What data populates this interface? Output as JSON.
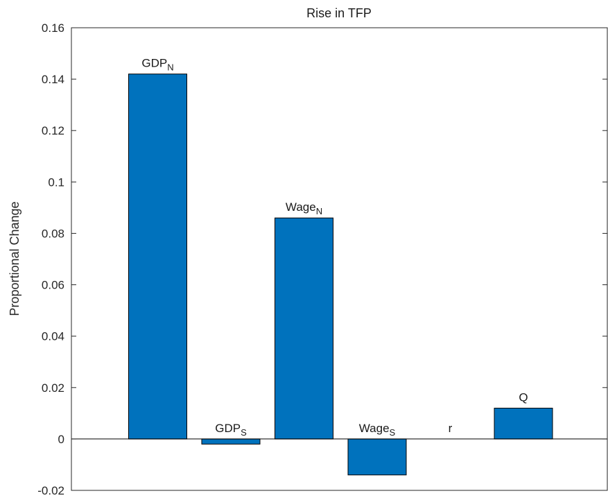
{
  "chart_data": {
    "type": "bar",
    "title": "Rise in TFP",
    "xlabel": "",
    "ylabel": "Proportional Change",
    "ylim": [
      -0.02,
      0.16
    ],
    "yticks": [
      "-0.02",
      "0",
      "0.02",
      "0.04",
      "0.06",
      "0.08",
      "0.1",
      "0.12",
      "0.14",
      "0.16"
    ],
    "grid": false,
    "bar_color": "#0072BD",
    "bars": [
      {
        "label": "GDP",
        "sub": "N",
        "value": 0.142
      },
      {
        "label": "GDP",
        "sub": "S",
        "value": -0.002
      },
      {
        "label": "Wage",
        "sub": "N",
        "value": 0.086
      },
      {
        "label": "Wage",
        "sub": "S",
        "value": -0.014
      },
      {
        "label": "r",
        "sub": "",
        "value": 0.0
      },
      {
        "label": "Q",
        "sub": "",
        "value": 0.012
      }
    ]
  }
}
